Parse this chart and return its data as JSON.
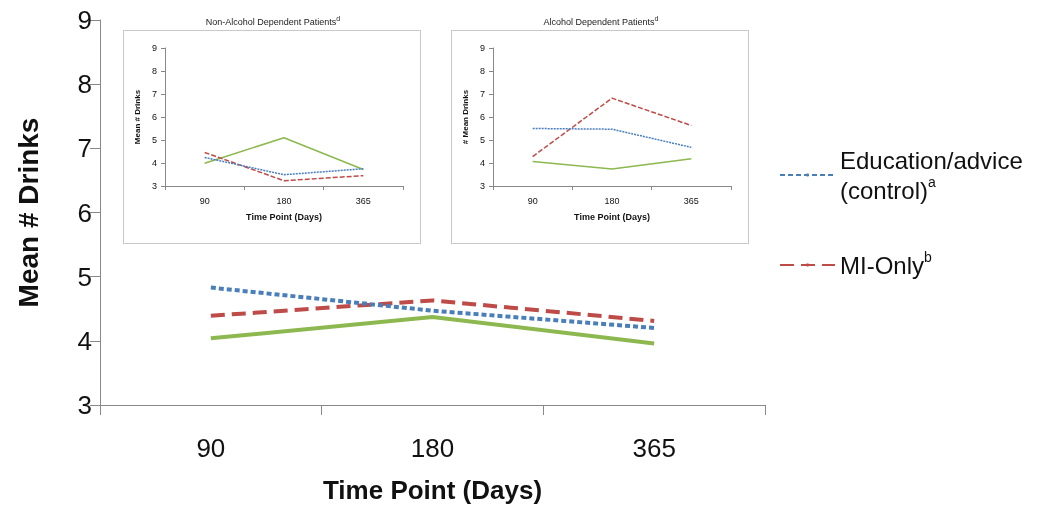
{
  "chart_data": [
    {
      "type": "line",
      "xlabel": "Time Point (Days)",
      "ylabel": "Mean # Drinks",
      "categories": [
        "90",
        "180",
        "365"
      ],
      "ylim": [
        3,
        9
      ],
      "yticks": [
        3,
        4,
        5,
        6,
        7,
        8,
        9
      ],
      "grid": false,
      "legend": "right",
      "marker": "none",
      "series": [
        {
          "name": "Education/advice (control)$^{a}$",
          "color": "#4a7ebb",
          "line_style": "dotted",
          "values": [
            4.83,
            4.47,
            4.2
          ]
        },
        {
          "name": "MI-Only$^{b}$",
          "color": "#be4b48",
          "line_style": "dashed",
          "values": [
            4.39,
            4.63,
            4.31
          ]
        },
        {
          "color": "#8cb84f",
          "line_style": "solid",
          "values": [
            4.04,
            4.37,
            3.96
          ]
        }
      ]
    },
    {
      "type": "line",
      "title": "Non-Alcohol Dependent Patients$^{d}$",
      "xlabel": "Time Point (Days)",
      "ylabel": "Mean # Drinks",
      "categories": [
        "90",
        "180",
        "365"
      ],
      "ylim": [
        3,
        9
      ],
      "yticks": [
        3,
        4,
        5,
        6,
        7,
        8,
        9
      ],
      "grid": false,
      "legend": false,
      "marker": "none",
      "series": [
        {
          "color": "#4a7ebb",
          "line_style": "dotted",
          "values": [
            4.24,
            3.49,
            3.75
          ]
        },
        {
          "color": "#be4b48",
          "line_style": "dashed",
          "values": [
            4.46,
            3.23,
            3.45
          ]
        },
        {
          "color": "#8cb84f",
          "line_style": "solid",
          "values": [
            3.99,
            5.1,
            3.72
          ]
        }
      ]
    },
    {
      "type": "line",
      "title": "Alcohol Dependent Patients$^{d}$",
      "xlabel": "Time Point (Days)",
      "ylabel": "# Mean Drinks",
      "categories": [
        "90",
        "180",
        "365"
      ],
      "ylim": [
        3,
        9
      ],
      "yticks": [
        3,
        4,
        5,
        6,
        7,
        8,
        9
      ],
      "grid": false,
      "legend": false,
      "marker": "none",
      "series": [
        {
          "color": "#4a7ebb",
          "line_style": "dotted",
          "values": [
            5.5,
            5.47,
            4.68
          ]
        },
        {
          "color": "#be4b48",
          "line_style": "dashed",
          "values": [
            4.28,
            6.82,
            5.63
          ]
        },
        {
          "color": "#8cb84f",
          "line_style": "solid",
          "values": [
            4.07,
            3.74,
            4.18
          ]
        }
      ]
    }
  ]
}
